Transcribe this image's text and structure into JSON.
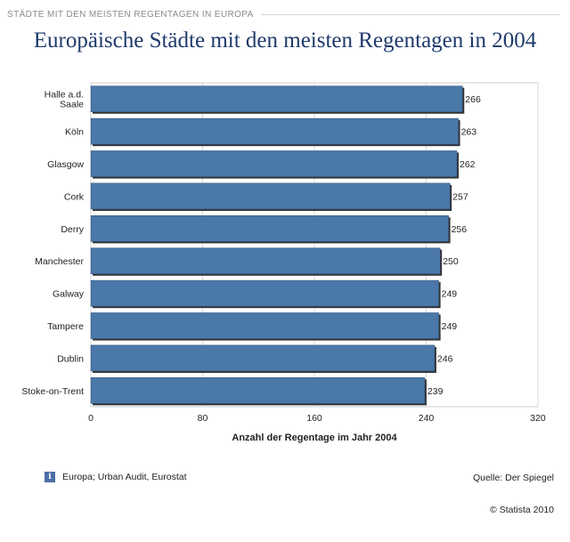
{
  "header": {
    "section_title": "STÄDTE MIT DEN MEISTEN REGENTAGEN IN EUROPA"
  },
  "chart_data": {
    "type": "bar",
    "orientation": "horizontal",
    "title": "Europäische Städte mit den meisten Regentagen in 2004",
    "categories": [
      "Halle a.d.\nSaale",
      "Köln",
      "Glasgow",
      "Cork",
      "Derry",
      "Manchester",
      "Galway",
      "Tampere",
      "Dublin",
      "Stoke-on-Trent"
    ],
    "values": [
      266,
      263,
      262,
      257,
      256,
      250,
      249,
      249,
      246,
      239
    ],
    "xlabel": "Anzahl der Regentage im Jahr 2004",
    "ylabel": "",
    "xlim": [
      0,
      320
    ],
    "ticks": [
      0,
      80,
      160,
      240,
      320
    ],
    "grid": true,
    "bar_color": "#4a78a8"
  },
  "footer": {
    "source_note": "Europa; Urban Audit, Eurostat",
    "source": "Quelle: Der Spiegel",
    "copyright": "© Statista 2010",
    "info_icon_glyph": "i"
  }
}
